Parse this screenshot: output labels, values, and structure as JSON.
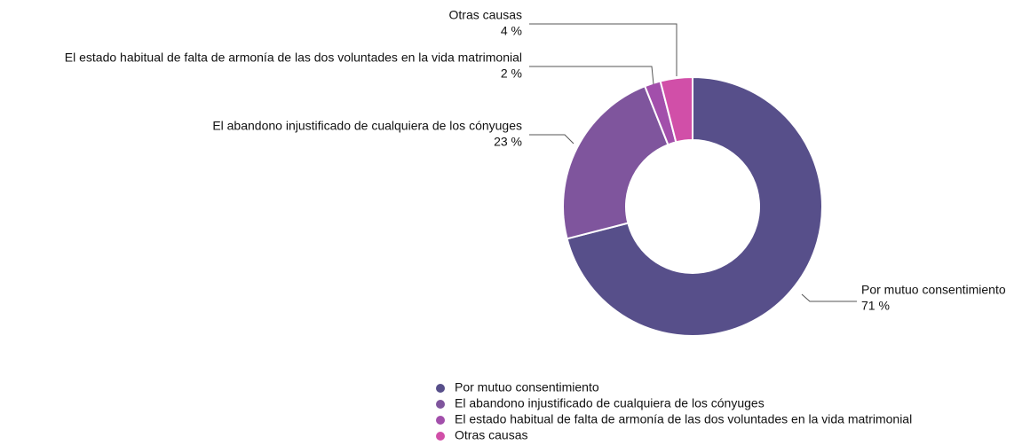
{
  "chart_data": {
    "type": "donut",
    "categories": [
      "Por mutuo consentimiento",
      "El abandono injustificado de cualquiera de los cónyuges",
      "El estado habitual de falta de armonía de las dos voluntades en la vida matrimonial",
      "Otras causas"
    ],
    "values": [
      71,
      23,
      2,
      4
    ],
    "value_labels": [
      "71 %",
      "23 %",
      "2 %",
      "4 %"
    ],
    "colors": [
      "#574f8a",
      "#7f559d",
      "#a24fab",
      "#d14fa8"
    ],
    "legend": "bottom"
  }
}
